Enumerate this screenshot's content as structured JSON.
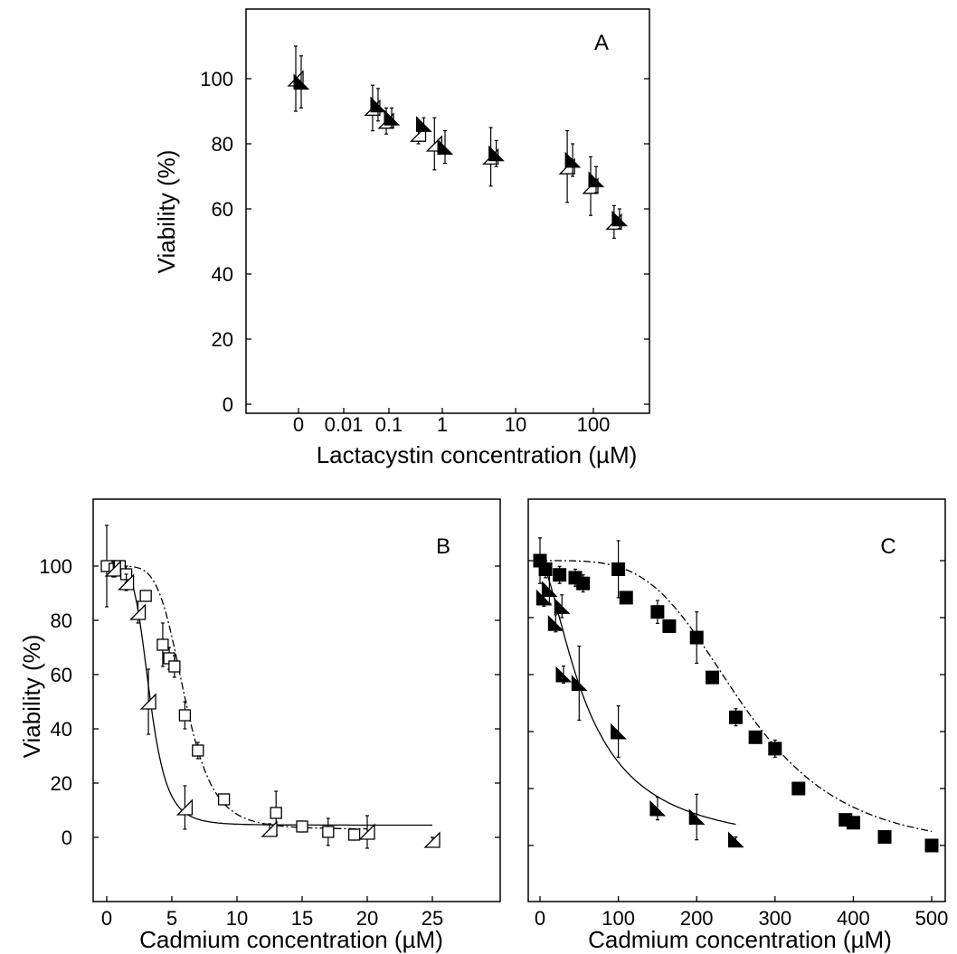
{
  "chart_data": [
    {
      "panel": "A",
      "type": "scatter",
      "xlabel": "Lactacystin concentration (µM)",
      "ylabel": "Viability (%)",
      "xscale": "log (0 plotted as a point one decade below 0.01)",
      "x_ticks": [
        "0",
        "0.01",
        "0.1",
        "1",
        "10",
        "100"
      ],
      "y_ticks": [
        "0",
        "20",
        "40",
        "60",
        "80",
        "100"
      ],
      "ylim": [
        -10,
        120
      ],
      "series": [
        {
          "marker": "open-triangle",
          "points": [
            {
              "x": 0,
              "y": 100,
              "err": 10
            },
            {
              "x": 0.05,
              "y": 91,
              "err": 7
            },
            {
              "x": 0.1,
              "y": 87,
              "err": 4
            },
            {
              "x": 0.4,
              "y": 83,
              "err": 3
            },
            {
              "x": 0.8,
              "y": 80,
              "err": 8
            },
            {
              "x": 5,
              "y": 76,
              "err": 9
            },
            {
              "x": 50,
              "y": 73,
              "err": 11
            },
            {
              "x": 100,
              "y": 67,
              "err": 9
            },
            {
              "x": 200,
              "y": 56,
              "err": 5
            }
          ]
        },
        {
          "marker": "filled-triangle",
          "points": [
            {
              "x": 0,
              "y": 99,
              "err": 8
            },
            {
              "x": 0.05,
              "y": 92,
              "err": 5
            },
            {
              "x": 0.1,
              "y": 88,
              "err": 3
            },
            {
              "x": 0.4,
              "y": 86,
              "err": 2
            },
            {
              "x": 1,
              "y": 79,
              "err": 5
            },
            {
              "x": 5,
              "y": 77,
              "err": 4
            },
            {
              "x": 50,
              "y": 75,
              "err": 5
            },
            {
              "x": 100,
              "y": 69,
              "err": 4
            },
            {
              "x": 200,
              "y": 57,
              "err": 3
            }
          ]
        }
      ],
      "annotations": [
        "A"
      ]
    },
    {
      "panel": "B",
      "type": "scatter",
      "xlabel": "Cadmium concentration (µM)",
      "ylabel": "Viability (%)",
      "x_ticks": [
        "0",
        "5",
        "10",
        "15",
        "20",
        "25"
      ],
      "y_ticks": [
        "0",
        "20",
        "40",
        "60",
        "80",
        "100"
      ],
      "xlim": [
        -1,
        30
      ],
      "ylim": [
        -10,
        120
      ],
      "series": [
        {
          "marker": "open-square",
          "line": "dashed",
          "points": [
            {
              "x": 0,
              "y": 100,
              "err": 15
            },
            {
              "x": 0.6,
              "y": 99,
              "err": 3
            },
            {
              "x": 1,
              "y": 100,
              "err": 2
            },
            {
              "x": 1.5,
              "y": 97,
              "err": 3
            },
            {
              "x": 3,
              "y": 89,
              "err": 2
            },
            {
              "x": 4.3,
              "y": 71,
              "err": 8
            },
            {
              "x": 4.8,
              "y": 66,
              "err": 4
            },
            {
              "x": 5.2,
              "y": 63,
              "err": 4
            },
            {
              "x": 6,
              "y": 45,
              "err": 5
            },
            {
              "x": 7,
              "y": 32,
              "err": 3
            },
            {
              "x": 9,
              "y": 14,
              "err": 2
            },
            {
              "x": 13,
              "y": 9,
              "err": 8
            },
            {
              "x": 15,
              "y": 4,
              "err": 2
            },
            {
              "x": 17,
              "y": 2,
              "err": 5
            },
            {
              "x": 19,
              "y": 1,
              "err": 2
            }
          ]
        },
        {
          "marker": "open-triangle",
          "line": "solid",
          "points": [
            {
              "x": 0.5,
              "y": 99,
              "err": 3
            },
            {
              "x": 1.5,
              "y": 94,
              "err": 3
            },
            {
              "x": 2.4,
              "y": 83,
              "err": 4
            },
            {
              "x": 3.2,
              "y": 50,
              "err": 12
            },
            {
              "x": 6,
              "y": 11,
              "err": 8
            },
            {
              "x": 12.5,
              "y": 3,
              "err": 2
            },
            {
              "x": 20,
              "y": 2,
              "err": 6
            },
            {
              "x": 25,
              "y": -1,
              "err": 1
            }
          ]
        }
      ],
      "annotations": [
        "B"
      ]
    },
    {
      "panel": "C",
      "type": "scatter",
      "xlabel": "Cadmium concentration (µM)",
      "ylabel": "",
      "x_ticks": [
        "0",
        "100",
        "200",
        "300",
        "400",
        "500"
      ],
      "xlim": [
        -8,
        510
      ],
      "ylim": [
        -10,
        120
      ],
      "series": [
        {
          "marker": "filled-square",
          "line": "dashed",
          "points": [
            {
              "x": 0,
              "y": 100,
              "err": 8
            },
            {
              "x": 7,
              "y": 97,
              "err": 3
            },
            {
              "x": 25,
              "y": 95,
              "err": 3
            },
            {
              "x": 45,
              "y": 94,
              "err": 3
            },
            {
              "x": 55,
              "y": 92,
              "err": 3
            },
            {
              "x": 100,
              "y": 97,
              "err": 10
            },
            {
              "x": 110,
              "y": 87,
              "err": 2
            },
            {
              "x": 150,
              "y": 82,
              "err": 4
            },
            {
              "x": 165,
              "y": 77,
              "err": 2
            },
            {
              "x": 200,
              "y": 73,
              "err": 9
            },
            {
              "x": 220,
              "y": 59,
              "err": 2
            },
            {
              "x": 250,
              "y": 45,
              "err": 3
            },
            {
              "x": 275,
              "y": 38,
              "err": 2
            },
            {
              "x": 300,
              "y": 34,
              "err": 3
            },
            {
              "x": 330,
              "y": 20,
              "err": 2
            },
            {
              "x": 390,
              "y": 9,
              "err": 2
            },
            {
              "x": 400,
              "y": 8,
              "err": 2
            },
            {
              "x": 440,
              "y": 3,
              "err": 2
            },
            {
              "x": 500,
              "y": 0,
              "err": 1
            }
          ]
        },
        {
          "marker": "filled-triangle",
          "line": "solid",
          "points": [
            {
              "x": 5,
              "y": 87,
              "err": 3
            },
            {
              "x": 12,
              "y": 90,
              "err": 5
            },
            {
              "x": 20,
              "y": 78,
              "err": 3
            },
            {
              "x": 28,
              "y": 84,
              "err": 4
            },
            {
              "x": 30,
              "y": 60,
              "err": 3
            },
            {
              "x": 50,
              "y": 57,
              "err": 13
            },
            {
              "x": 100,
              "y": 40,
              "err": 9
            },
            {
              "x": 150,
              "y": 13,
              "err": 4
            },
            {
              "x": 200,
              "y": 10,
              "err": 8
            },
            {
              "x": 250,
              "y": 2,
              "err": 1
            }
          ]
        }
      ],
      "annotations": [
        "C"
      ]
    }
  ]
}
